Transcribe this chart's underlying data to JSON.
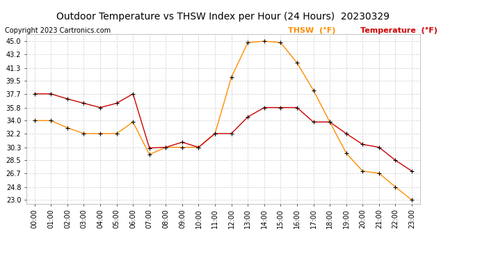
{
  "title": "Outdoor Temperature vs THSW Index per Hour (24 Hours)  20230329",
  "copyright": "Copyright 2023 Cartronics.com",
  "legend_thsw": "THSW  (°F)",
  "legend_temp": "Temperature  (°F)",
  "hours": [
    "00:00",
    "01:00",
    "02:00",
    "03:00",
    "04:00",
    "05:00",
    "06:00",
    "07:00",
    "08:00",
    "09:00",
    "10:00",
    "11:00",
    "12:00",
    "13:00",
    "14:00",
    "15:00",
    "16:00",
    "17:00",
    "18:00",
    "19:00",
    "20:00",
    "21:00",
    "22:00",
    "23:00"
  ],
  "temperature": [
    37.7,
    37.7,
    37.0,
    36.4,
    35.8,
    36.4,
    37.7,
    30.2,
    30.3,
    31.0,
    30.3,
    32.2,
    32.2,
    34.5,
    35.8,
    35.8,
    35.8,
    33.8,
    33.8,
    32.2,
    30.7,
    30.3,
    28.5,
    27.0
  ],
  "thsw": [
    34.0,
    34.0,
    33.0,
    32.2,
    32.2,
    32.2,
    33.8,
    29.3,
    30.3,
    30.3,
    30.3,
    32.2,
    40.0,
    44.8,
    45.0,
    44.8,
    42.0,
    38.2,
    33.8,
    29.5,
    27.0,
    26.7,
    24.8,
    23.0
  ],
  "temp_color": "#cc0000",
  "thsw_color": "#ff8c00",
  "marker_color": "#000000",
  "bg_color": "#ffffff",
  "grid_color": "#cccccc",
  "title_color": "#000000",
  "copyright_color": "#000000",
  "legend_thsw_color": "#ff8c00",
  "legend_temp_color": "#cc0000",
  "yticks": [
    23.0,
    24.8,
    26.7,
    28.5,
    30.3,
    32.2,
    34.0,
    35.8,
    37.7,
    39.5,
    41.3,
    43.2,
    45.0
  ],
  "ylim": [
    22.5,
    46.0
  ],
  "title_fontsize": 10,
  "copyright_fontsize": 7,
  "legend_fontsize": 8,
  "tick_fontsize": 7
}
